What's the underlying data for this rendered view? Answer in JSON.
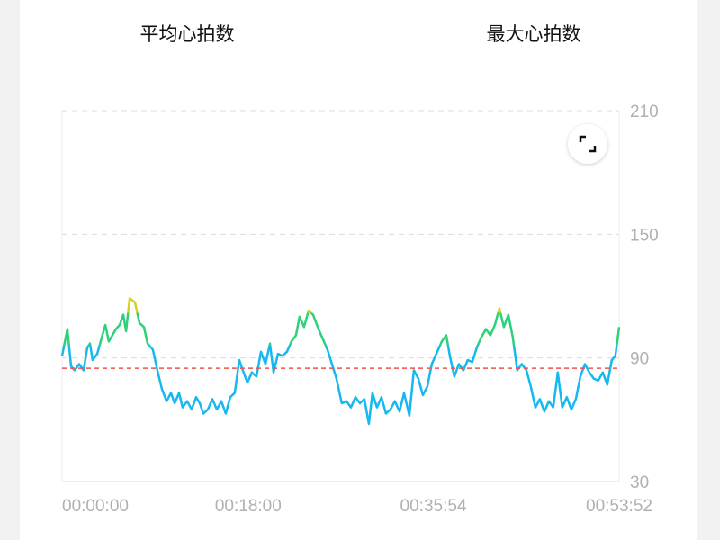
{
  "stats": [
    {
      "value": 85,
      "label": "平均心拍数"
    },
    {
      "value": 120,
      "label": "最大心拍数"
    }
  ],
  "chart_data": {
    "type": "line",
    "x": [
      0,
      31,
      52,
      73,
      99,
      125,
      146,
      162,
      177,
      204,
      230,
      251,
      271,
      292,
      313,
      334,
      355,
      371,
      392,
      423,
      449,
      475,
      496,
      527,
      553,
      579,
      606,
      632,
      653,
      679,
      699,
      726,
      752,
      778,
      799,
      820,
      846,
      872,
      898,
      924,
      950,
      976,
      1002,
      1028,
      1049,
      1075,
      1101,
      1128,
      1154,
      1180,
      1206,
      1227,
      1253,
      1279,
      1305,
      1331,
      1357,
      1378,
      1404,
      1430,
      1456,
      1488,
      1514,
      1540,
      1566,
      1592,
      1623,
      1650,
      1676,
      1702,
      1728,
      1754,
      1780,
      1801,
      1827,
      1853,
      1879,
      1905,
      1931,
      1958,
      1984,
      2015,
      2041,
      2067,
      2093,
      2119,
      2145,
      2177,
      2203,
      2229,
      2250,
      2276,
      2302,
      2328,
      2354,
      2380,
      2406,
      2432,
      2459,
      2485,
      2511,
      2537,
      2563,
      2589,
      2615,
      2641,
      2667,
      2694,
      2720,
      2746,
      2772,
      2798,
      2824,
      2850,
      2876,
      2902,
      2928,
      2955,
      2981,
      3007,
      3033,
      3059,
      3085,
      3111,
      3137,
      3163,
      3189,
      3210,
      3232
    ],
    "values": [
      91,
      104,
      86,
      84,
      87,
      84,
      95,
      97,
      89,
      92,
      100,
      106,
      98,
      101,
      104,
      106,
      111,
      103,
      119,
      117,
      107,
      105,
      97,
      94,
      84,
      75,
      69,
      73,
      68,
      73,
      66,
      69,
      65,
      71,
      68,
      63,
      65,
      70,
      65,
      69,
      63,
      71,
      73,
      89,
      84,
      78,
      83,
      81,
      93,
      87,
      97,
      83,
      92,
      91,
      93,
      98,
      101,
      110,
      105,
      113,
      111,
      104,
      99,
      94,
      87,
      80,
      68,
      69,
      66,
      71,
      68,
      70,
      58,
      73,
      66,
      71,
      63,
      65,
      69,
      64,
      73,
      62,
      84,
      80,
      72,
      76,
      87,
      93,
      98,
      101,
      91,
      81,
      87,
      84,
      89,
      88,
      95,
      100,
      104,
      101,
      106,
      114,
      105,
      111,
      100,
      84,
      87,
      84,
      76,
      66,
      70,
      64,
      69,
      66,
      83,
      66,
      71,
      65,
      70,
      81,
      87,
      83,
      80,
      79,
      83,
      77,
      89,
      91,
      105
    ],
    "xlim": [
      0,
      3232
    ],
    "xticks": [
      {
        "value": 0,
        "label": "00:00:00"
      },
      {
        "value": 1080,
        "label": "00:18:00"
      },
      {
        "value": 2154,
        "label": "00:35:54"
      },
      {
        "value": 3232,
        "label": "00:53:52"
      }
    ],
    "ylim": [
      30,
      210
    ],
    "yticks": [
      30,
      90,
      150,
      210
    ],
    "grid": true,
    "color_zones": [
      {
        "from": 30,
        "color": "#17b8ef"
      },
      {
        "from": 96,
        "color": "#2fd07a"
      },
      {
        "from": 112,
        "color": "#d9d21c"
      }
    ],
    "average_color": "#f0504a"
  }
}
